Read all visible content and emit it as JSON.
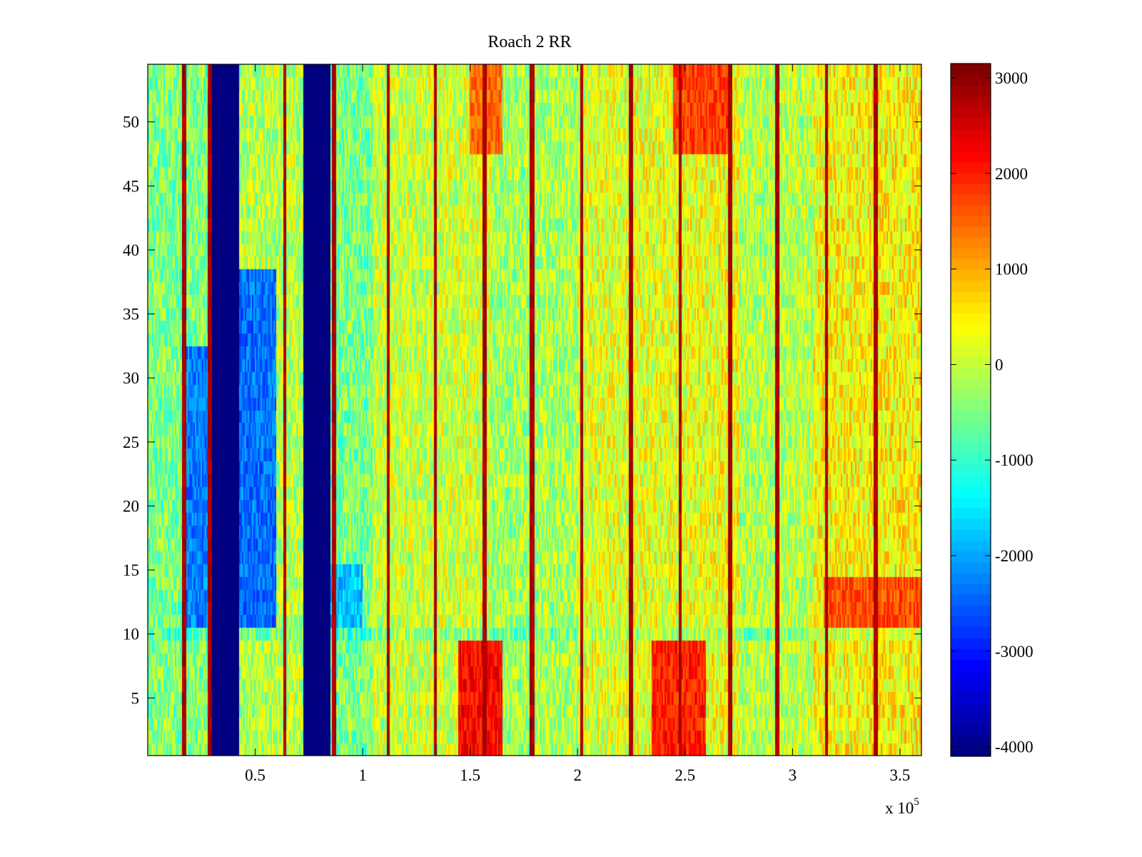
{
  "chart_data": {
    "type": "heatmap",
    "title": "Roach 2 RR",
    "xlabel": "",
    "ylabel": "",
    "x_exponent_label": "x 10",
    "x_exponent_power": "5",
    "xlim": [
      0,
      3.6
    ],
    "ylim": [
      0.5,
      54.5
    ],
    "x_ticks": [
      0.5,
      1,
      1.5,
      2,
      2.5,
      3,
      3.5
    ],
    "x_tick_labels": [
      "0.5",
      "1",
      "1.5",
      "2",
      "2.5",
      "3",
      "3.5"
    ],
    "y_ticks": [
      5,
      10,
      15,
      20,
      25,
      30,
      35,
      40,
      45,
      50
    ],
    "y_tick_labels": [
      "5",
      "10",
      "15",
      "20",
      "25",
      "30",
      "35",
      "40",
      "45",
      "50"
    ],
    "rows": 54,
    "colormap": "jet",
    "clim": [
      -4100,
      3150
    ],
    "colorbar_ticks": [
      3000,
      2000,
      1000,
      0,
      -1000,
      -2000,
      -3000,
      -4000
    ],
    "colorbar_tick_labels": [
      "3000",
      "2000",
      "1000",
      "0",
      "-1000",
      "-2000",
      "-3000",
      "-4000"
    ],
    "saturated_low_bands_x": [
      [
        0.3,
        0.43
      ],
      [
        0.73,
        0.85
      ]
    ],
    "high_value_stripes_x": [
      0.17,
      0.29,
      0.64,
      0.87,
      1.12,
      1.34,
      1.57,
      1.79,
      2.02,
      2.25,
      2.48,
      2.71,
      2.93,
      3.16,
      3.39
    ],
    "hot_regions": [
      {
        "x": [
          1.45,
          1.65
        ],
        "y": [
          1,
          9
        ],
        "level": 2200
      },
      {
        "x": [
          2.35,
          2.6
        ],
        "y": [
          1,
          9
        ],
        "level": 2000
      },
      {
        "x": [
          2.45,
          2.7
        ],
        "y": [
          48,
          54
        ],
        "level": 1800
      },
      {
        "x": [
          3.15,
          3.6
        ],
        "y": [
          11,
          14
        ],
        "level": 1700
      },
      {
        "x": [
          1.5,
          1.65
        ],
        "y": [
          48,
          54
        ],
        "level": 1500
      }
    ],
    "cold_regions": [
      {
        "x": [
          0.18,
          0.29
        ],
        "y": [
          11,
          32
        ],
        "level": -2300
      },
      {
        "x": [
          0.43,
          0.6
        ],
        "y": [
          11,
          38
        ],
        "level": -2400
      },
      {
        "x": [
          0.85,
          1.0
        ],
        "y": [
          11,
          15
        ],
        "level": -1800
      }
    ],
    "grid": false,
    "legend": "colorbar-right"
  }
}
